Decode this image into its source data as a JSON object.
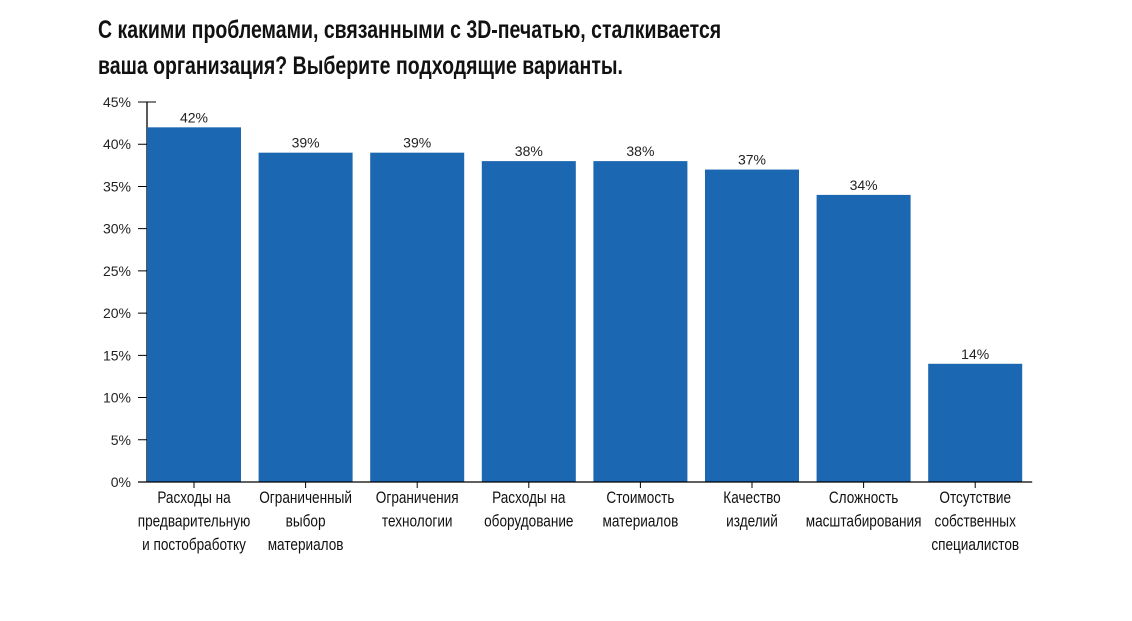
{
  "chart_data": {
    "type": "bar",
    "title_lines": [
      "С какими проблемами, связанными с 3D-печатью, сталкивается",
      "ваша организация? Выберите подходящие варианты."
    ],
    "categories": [
      [
        "Расходы на",
        "предварительную",
        "и постобработку"
      ],
      [
        "Ограниченный",
        "выбор",
        "материалов"
      ],
      [
        "Ограничения",
        "технологии"
      ],
      [
        "Расходы на",
        "оборудование"
      ],
      [
        "Стоимость",
        "материалов"
      ],
      [
        "Качество",
        "изделий"
      ],
      [
        "Сложность",
        "масштабирования"
      ],
      [
        "Отсутствие",
        "собственных",
        "специалистов"
      ]
    ],
    "values": [
      42,
      39,
      39,
      38,
      38,
      37,
      34,
      14
    ],
    "data_labels": [
      "42%",
      "39%",
      "39%",
      "38%",
      "38%",
      "37%",
      "34%",
      "14%"
    ],
    "ylim": [
      0,
      45
    ],
    "yticks": [
      0,
      5,
      10,
      15,
      20,
      25,
      30,
      35,
      40,
      45
    ],
    "ytick_labels": [
      "0%",
      "5%",
      "10%",
      "15%",
      "20%",
      "25%",
      "30%",
      "35%",
      "40%",
      "45%"
    ],
    "xlabel": "",
    "ylabel": "",
    "grid": false,
    "bar_color": "#1b67b1"
  }
}
